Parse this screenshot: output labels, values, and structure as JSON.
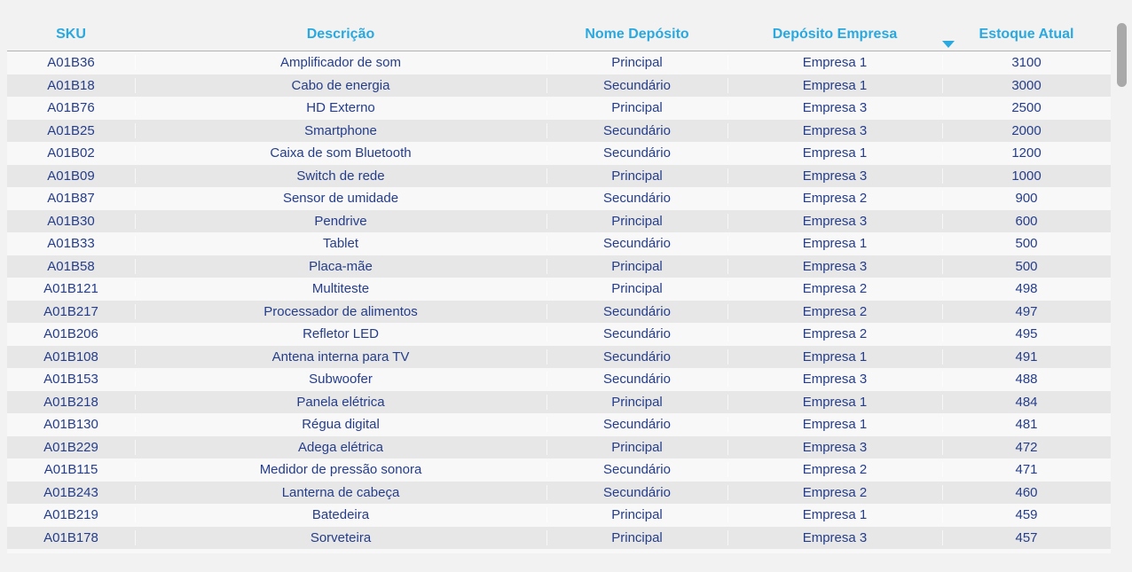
{
  "colors": {
    "accent": "#29A9E0",
    "data_text": "#253D8A",
    "page_bg": "#F2F2F2",
    "row_odd": "#F8F8F8",
    "row_even": "#E7E7E7",
    "header_underline": "#B3B3B3",
    "scrollbar_thumb": "#A9A9A9"
  },
  "table": {
    "columns": [
      {
        "key": "sku",
        "label": "SKU"
      },
      {
        "key": "descricao",
        "label": "Descrição"
      },
      {
        "key": "nome_deposito",
        "label": "Nome Depósito"
      },
      {
        "key": "deposito_empresa",
        "label": "Depósito Empresa"
      },
      {
        "key": "estoque_atual",
        "label": "Estoque Atual"
      }
    ],
    "sort": {
      "column": "Estoque Atual",
      "direction": "descending"
    },
    "rows": [
      [
        "A01B36",
        "Amplificador de som",
        "Principal",
        "Empresa 1",
        "3100"
      ],
      [
        "A01B18",
        "Cabo de energia",
        "Secundário",
        "Empresa 1",
        "3000"
      ],
      [
        "A01B76",
        "HD Externo",
        "Principal",
        "Empresa 3",
        "2500"
      ],
      [
        "A01B25",
        "Smartphone",
        "Secundário",
        "Empresa 3",
        "2000"
      ],
      [
        "A01B02",
        "Caixa de som Bluetooth",
        "Secundário",
        "Empresa 1",
        "1200"
      ],
      [
        "A01B09",
        "Switch de rede",
        "Principal",
        "Empresa 3",
        "1000"
      ],
      [
        "A01B87",
        "Sensor de umidade",
        "Secundário",
        "Empresa 2",
        "900"
      ],
      [
        "A01B30",
        "Pendrive",
        "Principal",
        "Empresa 3",
        "600"
      ],
      [
        "A01B33",
        "Tablet",
        "Secundário",
        "Empresa 1",
        "500"
      ],
      [
        "A01B58",
        "Placa-mãe",
        "Principal",
        "Empresa 3",
        "500"
      ],
      [
        "A01B121",
        "Multiteste",
        "Principal",
        "Empresa 2",
        "498"
      ],
      [
        "A01B217",
        "Processador de alimentos",
        "Secundário",
        "Empresa 2",
        "497"
      ],
      [
        "A01B206",
        "Refletor LED",
        "Secundário",
        "Empresa 2",
        "495"
      ],
      [
        "A01B108",
        "Antena interna para TV",
        "Secundário",
        "Empresa 1",
        "491"
      ],
      [
        "A01B153",
        "Subwoofer",
        "Secundário",
        "Empresa 3",
        "488"
      ],
      [
        "A01B218",
        "Panela elétrica",
        "Principal",
        "Empresa 1",
        "484"
      ],
      [
        "A01B130",
        "Régua digital",
        "Secundário",
        "Empresa 1",
        "481"
      ],
      [
        "A01B229",
        "Adega elétrica",
        "Principal",
        "Empresa 3",
        "472"
      ],
      [
        "A01B115",
        "Medidor de pressão sonora",
        "Secundário",
        "Empresa 2",
        "471"
      ],
      [
        "A01B243",
        "Lanterna de cabeça",
        "Secundário",
        "Empresa 2",
        "460"
      ],
      [
        "A01B219",
        "Batedeira",
        "Principal",
        "Empresa 1",
        "459"
      ],
      [
        "A01B178",
        "Sorveteira",
        "Principal",
        "Empresa 3",
        "457"
      ]
    ],
    "clipped_row_at_bottom": true
  }
}
